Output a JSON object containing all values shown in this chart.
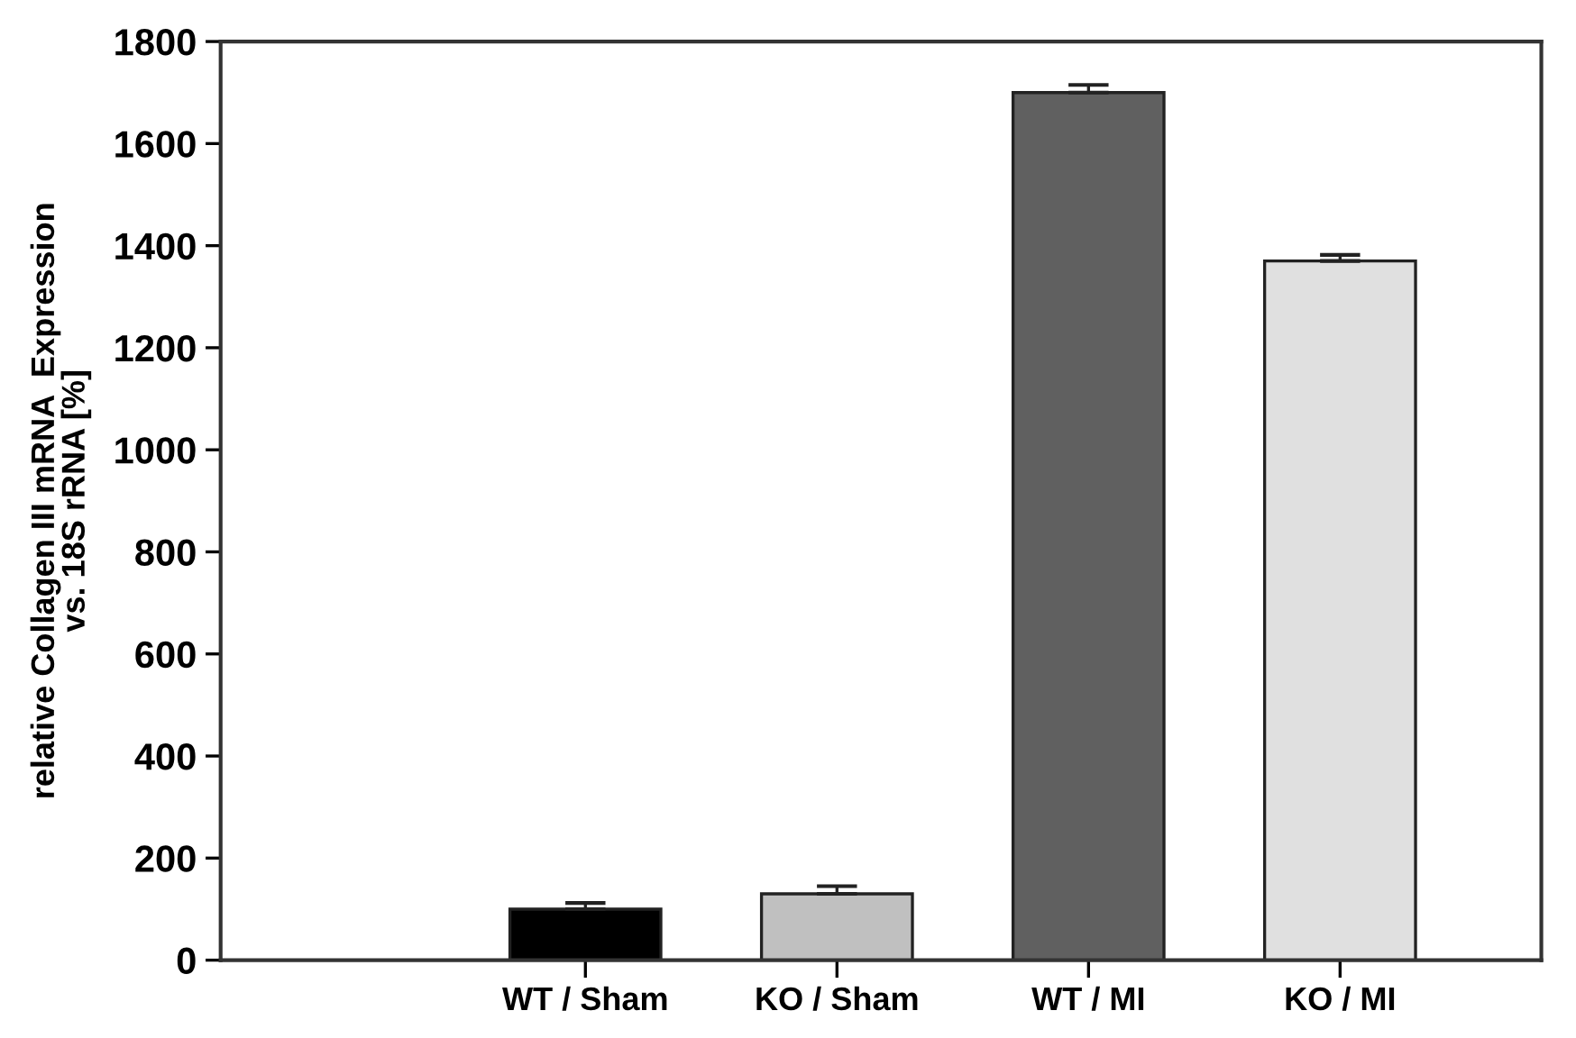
{
  "chart_data": {
    "type": "bar",
    "ylabel": "relative Collagen III mRNA  Expression\nvs. 18S rRNA [%]",
    "categories": [
      "WT / Sham",
      "KO / Sham",
      "WT / MI",
      "KO / MI"
    ],
    "values": [
      100,
      130,
      1700,
      1370
    ],
    "errors": [
      12,
      15,
      15,
      12
    ],
    "colors": [
      "#000000",
      "#c0c0c0",
      "#606060",
      "#e0e0e0"
    ],
    "ylim": [
      0,
      1800
    ],
    "yticks": [
      0,
      200,
      400,
      600,
      800,
      1000,
      1200,
      1400,
      1600,
      1800
    ],
    "grid": false,
    "legend": false
  }
}
